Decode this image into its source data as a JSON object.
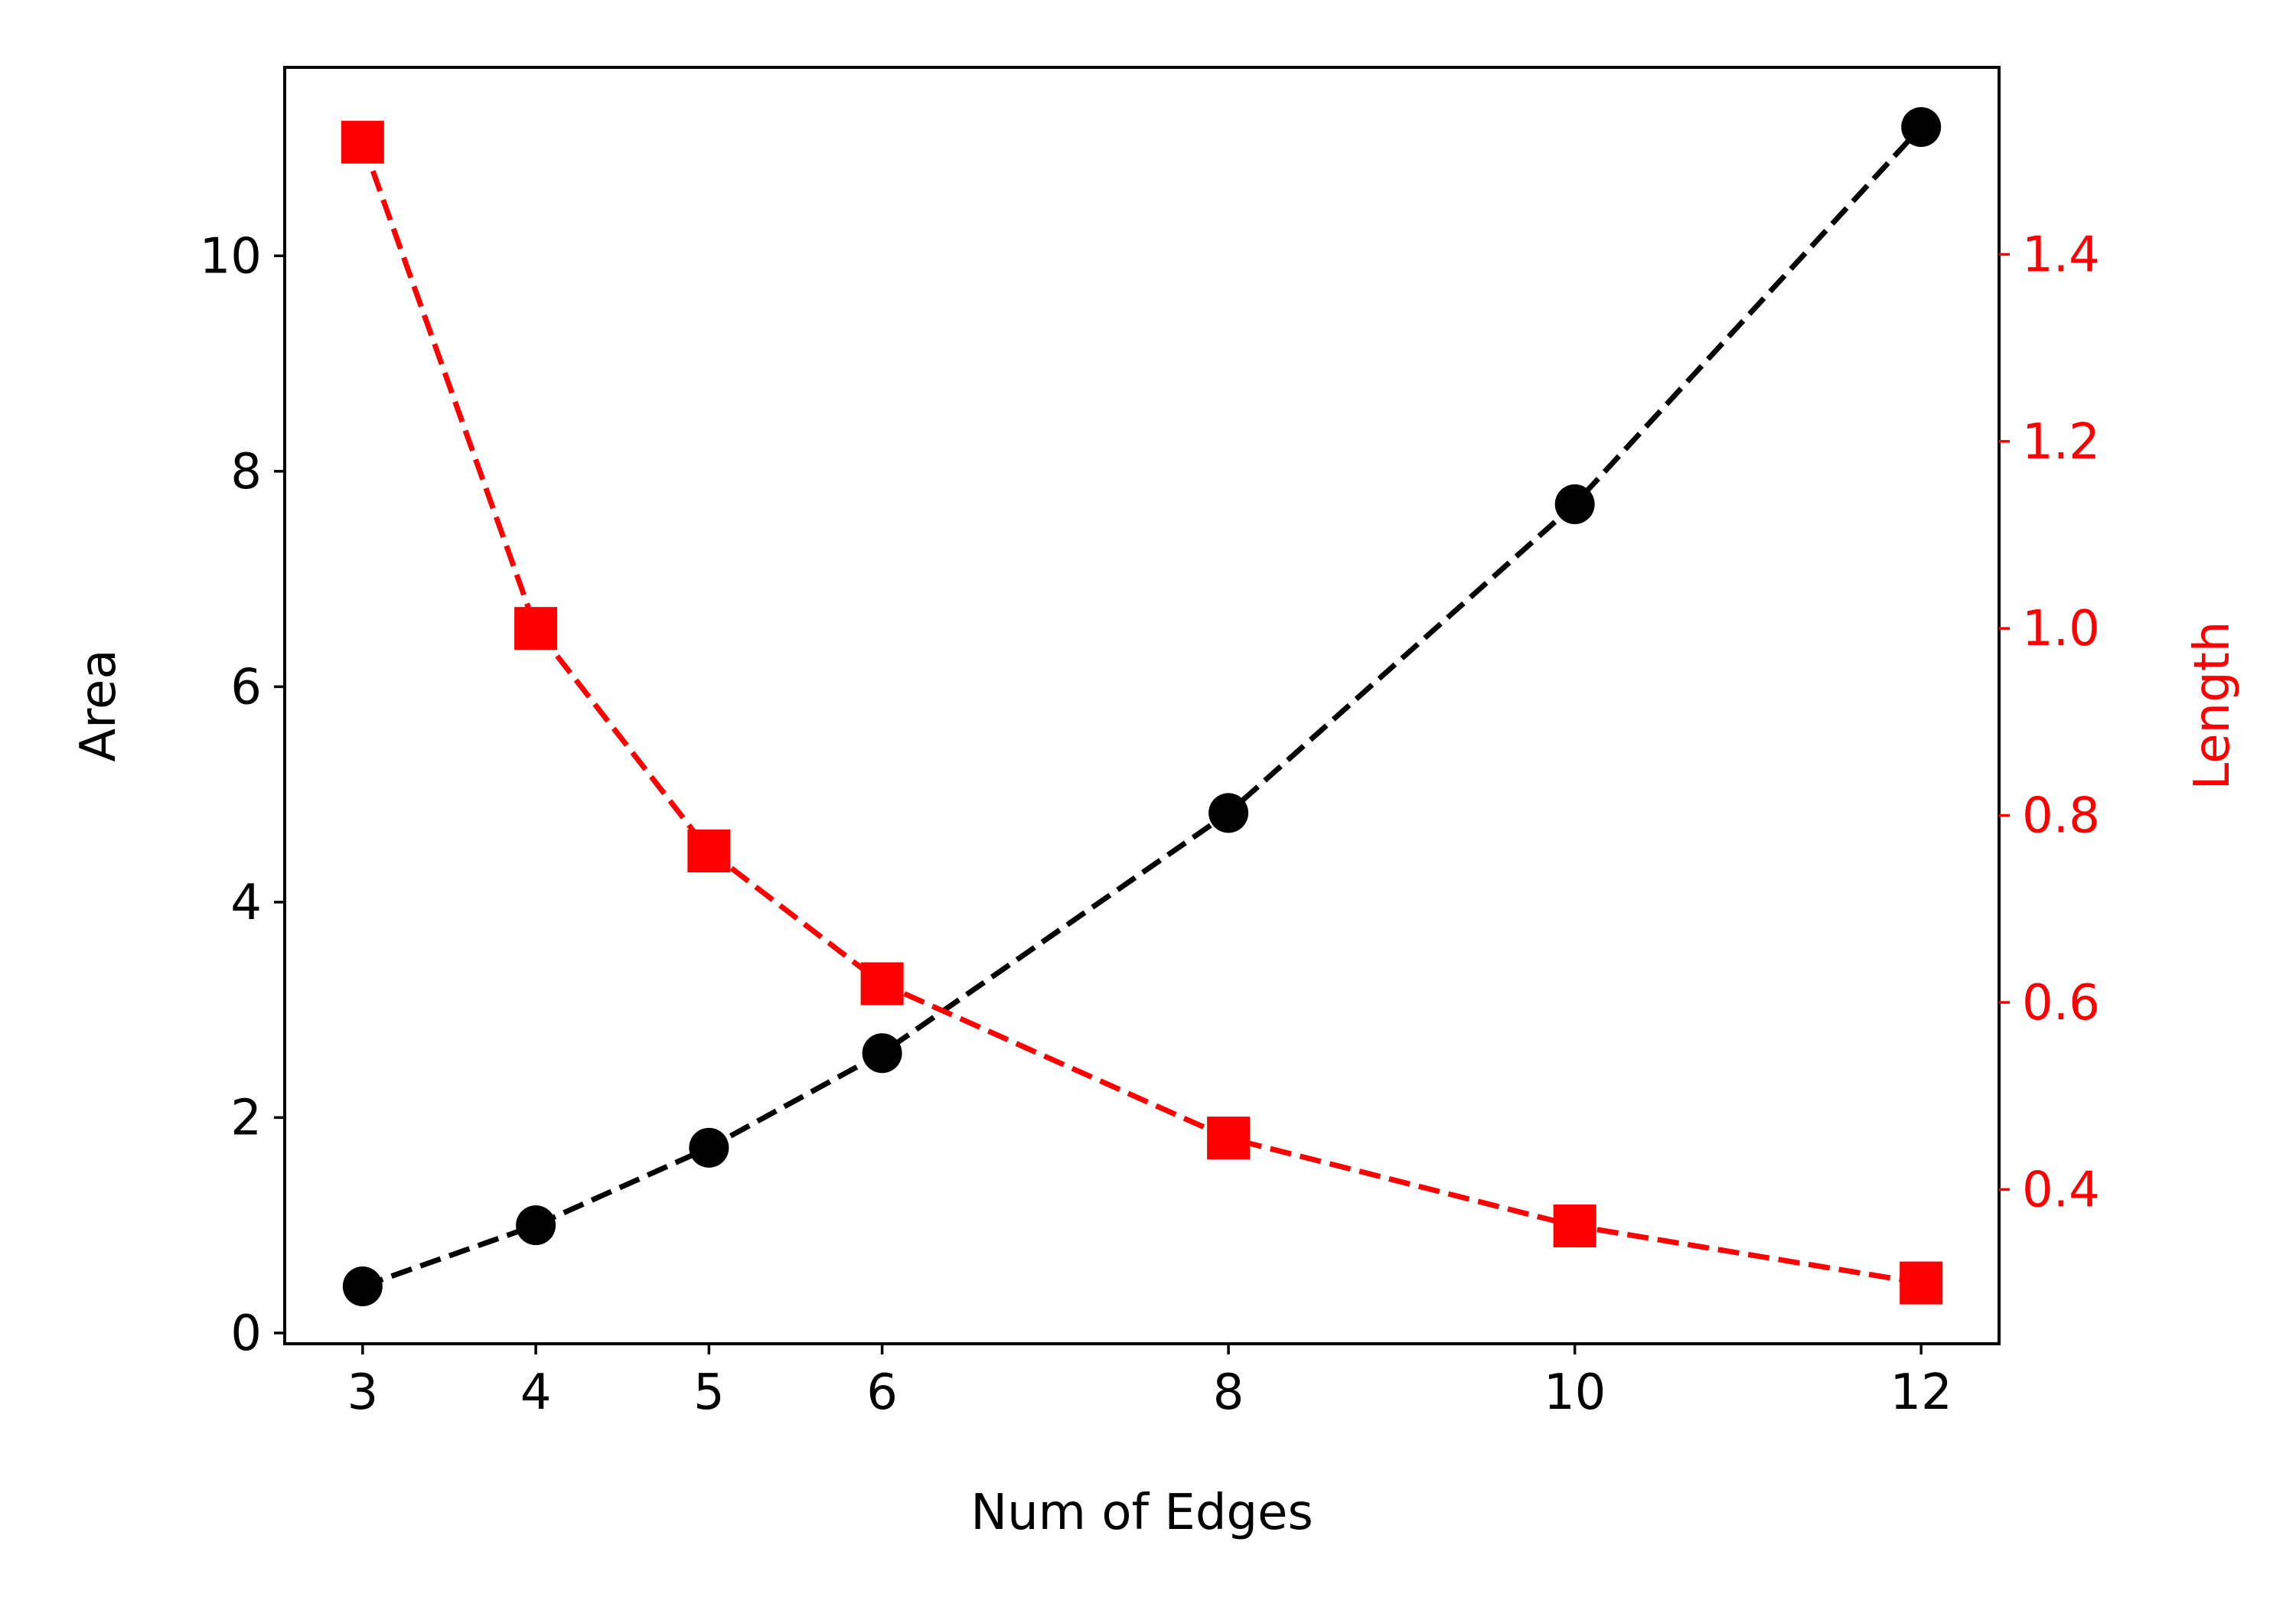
{
  "chart_data": {
    "type": "line",
    "title": "",
    "xlabel": "Num of Edges",
    "ylabel_left": "Area",
    "ylabel_right": "Length",
    "x": [
      3,
      4,
      5,
      6,
      8,
      10,
      12
    ],
    "xlim": [
      2.55,
      12.45
    ],
    "x_ticks": [
      "3",
      "4",
      "5",
      "6",
      "8",
      "10",
      "12"
    ],
    "ylim_left": [
      -0.1,
      11.75
    ],
    "y_ticks_left": [
      "0",
      "2",
      "4",
      "6",
      "8",
      "10"
    ],
    "ylim_right": [
      0.235,
      1.6
    ],
    "y_ticks_right": [
      "0.4",
      "0.6",
      "0.8",
      "1.0",
      "1.2",
      "1.4"
    ],
    "grid": false,
    "series": [
      {
        "axis": "left",
        "values": [
          0.433,
          1.0,
          1.72,
          2.598,
          4.828,
          7.694,
          11.196
        ],
        "color": "#000000",
        "marker": "circle",
        "linestyle": "dashed"
      },
      {
        "axis": "right",
        "values": [
          1.52,
          1.0,
          0.762,
          0.62,
          0.455,
          0.361,
          0.3
        ],
        "color": "#ff0000",
        "marker": "square",
        "linestyle": "dashed"
      }
    ]
  }
}
